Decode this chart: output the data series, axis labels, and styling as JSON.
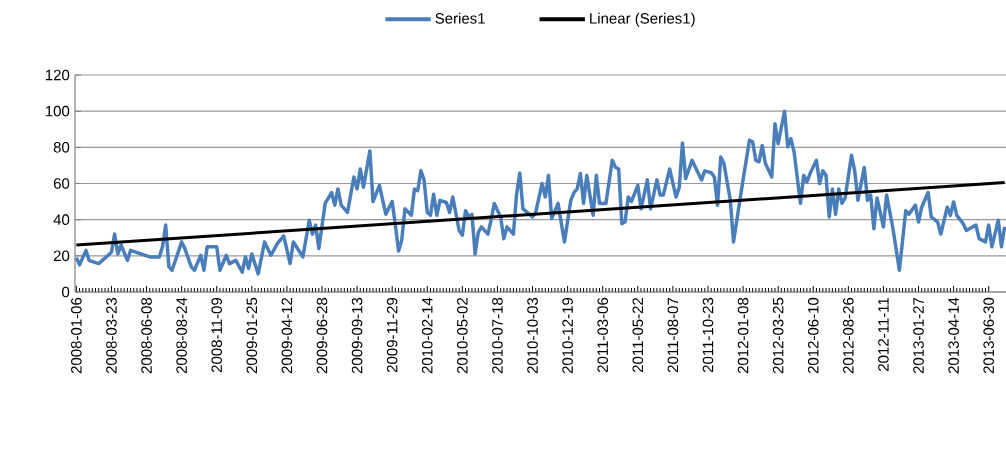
{
  "chart_data": {
    "type": "line",
    "xlim": [
      "2008-01-03",
      "2013-08-07"
    ],
    "xticks": [
      "2008-01-06",
      "2008-03-23",
      "2008-06-08",
      "2008-08-24",
      "2008-11-09",
      "2009-01-25",
      "2009-04-12",
      "2009-06-28",
      "2009-09-13",
      "2009-11-29",
      "2010-02-14",
      "2010-05-02",
      "2010-07-18",
      "2010-10-03",
      "2010-12-19",
      "2011-03-06",
      "2011-05-22",
      "2011-08-07",
      "2011-10-23",
      "2012-01-08",
      "2012-03-25",
      "2012-06-10",
      "2012-08-26",
      "2012-11-11",
      "2013-01-27",
      "2013-04-14",
      "2013-06-30"
    ],
    "ylim": [
      0,
      120
    ],
    "yticks": [
      0,
      20,
      40,
      60,
      80,
      100,
      120
    ],
    "grid": "y",
    "legend": "top",
    "marker": "none",
    "line_style": "solid",
    "series": [
      {
        "name": "Series1",
        "color": "#4a7ebb",
        "x": [
          "2008-01-06",
          "2008-01-13",
          "2008-01-27",
          "2008-02-03",
          "2008-02-24",
          "2008-03-23",
          "2008-03-30",
          "2008-04-06",
          "2008-04-13",
          "2008-04-27",
          "2008-05-04",
          "2008-06-15",
          "2008-07-06",
          "2008-07-13",
          "2008-07-20",
          "2008-07-27",
          "2008-08-03",
          "2008-08-24",
          "2008-08-31",
          "2008-09-14",
          "2008-09-21",
          "2008-10-05",
          "2008-10-12",
          "2008-10-19",
          "2008-11-09",
          "2008-11-16",
          "2008-11-30",
          "2008-12-07",
          "2008-12-21",
          "2009-01-04",
          "2009-01-11",
          "2009-01-18",
          "2009-01-25",
          "2009-02-08",
          "2009-02-22",
          "2009-03-08",
          "2009-03-22",
          "2009-04-05",
          "2009-04-19",
          "2009-04-26",
          "2009-05-03",
          "2009-05-17",
          "2009-05-31",
          "2009-06-07",
          "2009-06-14",
          "2009-06-21",
          "2009-07-05",
          "2009-07-19",
          "2009-07-26",
          "2009-08-02",
          "2009-08-09",
          "2009-08-23",
          "2009-09-06",
          "2009-09-13",
          "2009-09-20",
          "2009-09-27",
          "2009-10-11",
          "2009-10-18",
          "2009-11-01",
          "2009-11-15",
          "2009-11-29",
          "2009-12-06",
          "2009-12-13",
          "2009-12-20",
          "2009-12-27",
          "2010-01-10",
          "2010-01-17",
          "2010-01-24",
          "2010-01-31",
          "2010-02-07",
          "2010-02-14",
          "2010-02-21",
          "2010-02-28",
          "2010-03-07",
          "2010-03-14",
          "2010-03-28",
          "2010-04-04",
          "2010-04-11",
          "2010-04-25",
          "2010-05-02",
          "2010-05-09",
          "2010-05-16",
          "2010-05-23",
          "2010-05-30",
          "2010-06-06",
          "2010-06-13",
          "2010-06-27",
          "2010-07-04",
          "2010-07-11",
          "2010-07-25",
          "2010-08-01",
          "2010-08-08",
          "2010-08-22",
          "2010-08-29",
          "2010-09-05",
          "2010-09-12",
          "2010-10-03",
          "2010-10-10",
          "2010-10-24",
          "2010-10-31",
          "2010-11-07",
          "2010-11-14",
          "2010-11-28",
          "2010-12-12",
          "2010-12-26",
          "2011-01-02",
          "2011-01-09",
          "2011-01-16",
          "2011-01-23",
          "2011-01-30",
          "2011-02-13",
          "2011-02-20",
          "2011-02-27",
          "2011-03-13",
          "2011-03-27",
          "2011-04-03",
          "2011-04-10",
          "2011-04-17",
          "2011-04-24",
          "2011-05-01",
          "2011-05-08",
          "2011-05-22",
          "2011-05-29",
          "2011-06-12",
          "2011-06-19",
          "2011-07-03",
          "2011-07-10",
          "2011-07-17",
          "2011-07-31",
          "2011-08-14",
          "2011-08-21",
          "2011-08-28",
          "2011-09-04",
          "2011-09-18",
          "2011-10-02",
          "2011-10-09",
          "2011-10-16",
          "2011-10-30",
          "2011-11-06",
          "2011-11-13",
          "2011-11-20",
          "2011-11-27",
          "2011-12-11",
          "2011-12-18",
          "2012-01-01",
          "2012-01-08",
          "2012-01-22",
          "2012-01-29",
          "2012-02-05",
          "2012-02-12",
          "2012-02-19",
          "2012-02-26",
          "2012-03-11",
          "2012-03-18",
          "2012-03-25",
          "2012-04-08",
          "2012-04-15",
          "2012-04-22",
          "2012-04-29",
          "2012-05-13",
          "2012-05-20",
          "2012-05-27",
          "2012-06-03",
          "2012-06-17",
          "2012-06-24",
          "2012-07-01",
          "2012-07-08",
          "2012-07-15",
          "2012-07-22",
          "2012-07-29",
          "2012-08-05",
          "2012-08-12",
          "2012-08-19",
          "2012-09-02",
          "2012-09-09",
          "2012-09-16",
          "2012-09-30",
          "2012-10-07",
          "2012-10-14",
          "2012-10-21",
          "2012-10-28",
          "2012-11-11",
          "2012-11-18",
          "2012-12-02",
          "2012-12-16",
          "2012-12-30",
          "2013-01-06",
          "2013-01-20",
          "2013-01-27",
          "2013-02-03",
          "2013-02-17",
          "2013-02-24",
          "2013-03-10",
          "2013-03-17",
          "2013-03-31",
          "2013-04-07",
          "2013-04-14",
          "2013-04-21",
          "2013-05-05",
          "2013-05-12",
          "2013-06-02",
          "2013-06-09",
          "2013-06-23",
          "2013-06-30",
          "2013-07-07",
          "2013-07-21",
          "2013-07-28",
          "2013-08-04"
        ],
        "values": [
          19,
          15,
          23,
          17.5,
          15.7,
          22,
          32,
          21,
          26,
          17.5,
          23,
          19.4,
          19.4,
          25,
          37,
          14,
          12,
          27.7,
          24,
          14,
          12,
          20.3,
          12,
          25,
          25,
          12,
          20.3,
          15.7,
          17.5,
          11,
          19.4,
          13,
          21,
          10,
          27.7,
          20.3,
          26.7,
          31,
          15.7,
          27.7,
          25,
          19.4,
          39.7,
          32,
          37,
          24,
          49,
          55,
          48,
          57,
          48,
          44,
          63.6,
          57,
          68,
          58,
          78,
          50,
          59,
          43,
          50,
          37,
          22.7,
          28.6,
          46,
          42.4,
          57,
          56,
          67,
          62,
          44,
          42.4,
          54,
          42.4,
          50.7,
          49.5,
          44,
          52.5,
          34,
          31.4,
          45,
          41.5,
          43,
          21,
          33,
          36,
          32,
          39.7,
          49,
          41.5,
          29.5,
          36,
          32,
          54,
          65.8,
          46,
          41.5,
          44,
          60,
          52.5,
          64.5,
          40.6,
          49,
          27.7,
          50.7,
          55,
          57,
          65.5,
          49,
          64.5,
          42.4,
          64.5,
          49,
          49,
          72.8,
          69,
          68,
          37.8,
          38.7,
          52.5,
          50,
          59,
          46,
          62,
          46,
          62,
          53.6,
          53.6,
          68,
          52.5,
          58,
          82.4,
          62.7,
          72.8,
          65.5,
          62,
          67,
          66,
          63.6,
          48,
          74.7,
          71,
          50.7,
          27.7,
          50.7,
          62,
          83.9,
          83,
          72.8,
          72,
          81,
          71,
          63.6,
          93,
          82,
          100,
          80.3,
          84.8,
          77.4,
          49,
          64.5,
          60.9,
          65.5,
          72.8,
          60,
          67,
          64.5,
          41.5,
          57,
          43,
          57,
          49,
          52,
          75.6,
          67,
          50.7,
          68.9,
          50.7,
          53.6,
          35,
          52,
          36,
          53.6,
          35,
          12,
          45,
          43,
          48,
          38.7,
          46.9,
          55,
          41.5,
          38.7,
          32,
          46.9,
          42.4,
          49.8,
          42.4,
          37.8,
          34,
          37,
          29.5,
          27.7,
          37,
          25,
          39.7,
          25,
          36
        ]
      },
      {
        "name": "Linear (Series1)",
        "color": "#000000",
        "x": [
          "2008-01-06",
          "2013-08-04"
        ],
        "values": [
          26,
          60.5
        ]
      }
    ]
  }
}
